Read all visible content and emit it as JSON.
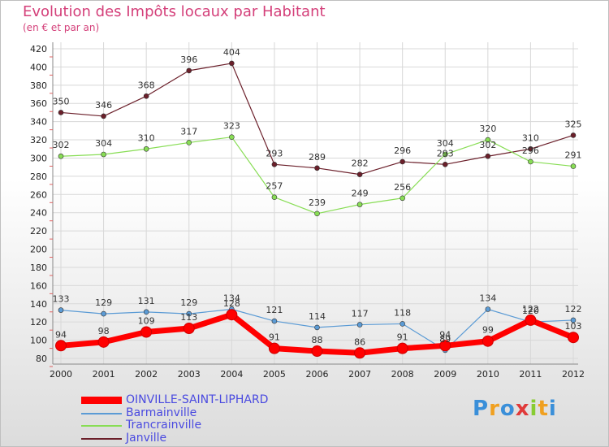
{
  "header": {
    "title": "Evolution des Impôts locaux par Habitant",
    "subtitle": "(en € et par an)"
  },
  "logo": {
    "text": "Proxiti"
  },
  "colors": {
    "oinville": "#ff0000",
    "barmainville": "#5b9bd5",
    "trancrainville": "#88dd55",
    "janville": "#6b1f2a",
    "title": "#d4407a",
    "legend_text": "#4a4ae0"
  },
  "chart_data": {
    "type": "line",
    "title": "Evolution des Impôts locaux par Habitant",
    "subtitle": "(en € et par an)",
    "xlabel": "",
    "ylabel": "",
    "x": [
      2000,
      2001,
      2002,
      2003,
      2004,
      2005,
      2006,
      2007,
      2008,
      2009,
      2010,
      2011,
      2012
    ],
    "ylim": [
      80,
      420
    ],
    "yticks": [
      80,
      100,
      120,
      140,
      160,
      180,
      200,
      220,
      240,
      260,
      280,
      300,
      320,
      340,
      360,
      380,
      400,
      420
    ],
    "grid": true,
    "legend_position": "bottom-left",
    "series": [
      {
        "name": "OINVILLE-SAINT-LIPHARD",
        "key": "oinville",
        "values": [
          94,
          98,
          109,
          113,
          128,
          91,
          88,
          86,
          91,
          94,
          99,
          122,
          103
        ]
      },
      {
        "name": "Barmainville",
        "key": "barmainville",
        "values": [
          133,
          129,
          131,
          129,
          134,
          121,
          114,
          117,
          118,
          89,
          134,
          120,
          122
        ]
      },
      {
        "name": "Trancrainville",
        "key": "trancrainville",
        "values": [
          302,
          304,
          310,
          317,
          323,
          257,
          239,
          249,
          256,
          304,
          320,
          296,
          291
        ]
      },
      {
        "name": "Janville",
        "key": "janville",
        "values": [
          350,
          346,
          368,
          396,
          404,
          293,
          289,
          282,
          296,
          293,
          302,
          310,
          325
        ]
      }
    ]
  }
}
